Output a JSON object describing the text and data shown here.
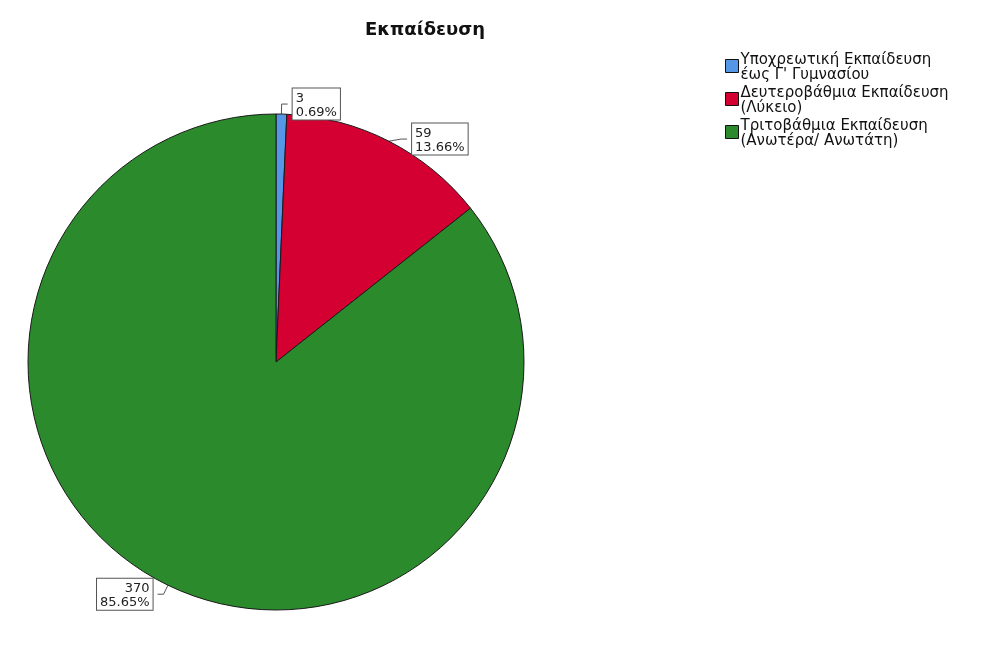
{
  "chart_data": {
    "type": "pie",
    "title": "Εκπαίδευση",
    "categories": [
      "Υποχρεωτική Εκπαίδευση\nέως Γ' Γυμνασίου",
      "Δευτεροβάθμια Εκπαίδευση\n(Λύκειο)",
      "Τριτοβάθμια Εκπαίδευση\n(Ανωτέρα/ Ανωτάτη)"
    ],
    "values": [
      3,
      59,
      370
    ],
    "colors": [
      "#5596e6",
      "#d50032",
      "#2b8a2b"
    ],
    "value_labels": [
      "3\n0.69%",
      "59\n13.66%",
      "370\n85.65%"
    ],
    "legend": "top right"
  }
}
